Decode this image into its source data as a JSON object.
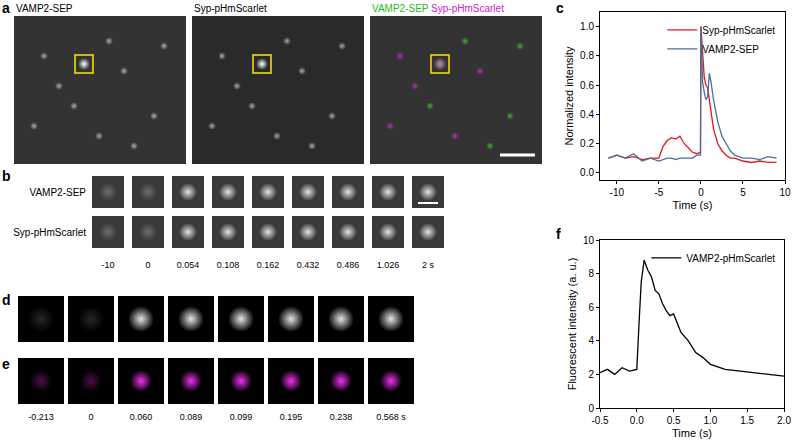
{
  "figure": {
    "panel_labels": [
      "a",
      "b",
      "c",
      "d",
      "e",
      "f"
    ],
    "a": {
      "channels": [
        "VAMP2-SEP",
        "Syp-pHmScarlet"
      ]
    },
    "b": {
      "rows": [
        "VAMP2-SEP",
        "Syp-pHmScarlet"
      ],
      "times": [
        "-10",
        "0",
        "0.054",
        "0.108",
        "0.162",
        "0.432",
        "0.486",
        "1.026",
        "2 s"
      ]
    },
    "e": {
      "times": [
        "-0.213",
        "0",
        "0.060",
        "0.089",
        "0.099",
        "0.195",
        "0.238",
        "0.568 s"
      ]
    }
  },
  "chart_data": [
    {
      "type": "line",
      "x_label": "Time (s)",
      "y_label": "Normalized intensity",
      "x": [
        -11,
        -10,
        -9,
        -8,
        -7,
        -6,
        -5,
        -4.5,
        -4,
        -3.5,
        -3,
        -2.5,
        -2,
        -1.5,
        -1,
        -0.5,
        -0.05,
        0,
        0.2,
        0.4,
        0.6,
        0.8,
        1.0,
        1.2,
        1.5,
        2,
        2.5,
        3,
        3.5,
        4,
        5,
        6,
        7,
        8,
        9
      ],
      "series": [
        {
          "name": "Syp-pHmScarlet",
          "color": "#e8141c",
          "values": [
            0.1,
            0.12,
            0.1,
            0.11,
            0.09,
            0.1,
            0.1,
            0.18,
            0.22,
            0.24,
            0.23,
            0.25,
            0.2,
            0.17,
            0.14,
            0.13,
            0.14,
            1.0,
            0.8,
            0.65,
            0.6,
            0.58,
            0.5,
            0.42,
            0.3,
            0.2,
            0.15,
            0.12,
            0.1,
            0.1,
            0.08,
            0.07,
            0.08,
            0.07,
            0.07
          ]
        },
        {
          "name": "VAMP2-SEP",
          "color": "#4a6e9c",
          "values": [
            0.1,
            0.12,
            0.1,
            0.13,
            0.08,
            0.1,
            0.08,
            0.09,
            0.1,
            0.1,
            0.09,
            0.1,
            0.1,
            0.1,
            0.1,
            0.12,
            0.12,
            1.0,
            0.62,
            0.55,
            0.5,
            0.52,
            0.68,
            0.62,
            0.5,
            0.35,
            0.25,
            0.2,
            0.15,
            0.12,
            0.1,
            0.1,
            0.09,
            0.11,
            0.1
          ]
        }
      ],
      "xlim": [
        -12,
        10
      ],
      "xticks": [
        -10,
        -5,
        0,
        5,
        10
      ],
      "ylim": [
        -0.05,
        1.1
      ],
      "yticks": [
        {
          "value": 0,
          "label": "0.0"
        },
        0.2,
        0.4,
        0.6,
        0.8,
        {
          "value": 1,
          "label": "1.0"
        }
      ],
      "legend": "top right",
      "grid": false
    },
    {
      "type": "line",
      "x_label": "Time (s)",
      "y_label": "Fluorescent intensity (a. u.)",
      "x": [
        -0.5,
        -0.4,
        -0.3,
        -0.2,
        -0.1,
        0,
        0.03,
        0.06,
        0.1,
        0.15,
        0.2,
        0.25,
        0.3,
        0.35,
        0.4,
        0.45,
        0.5,
        0.6,
        0.7,
        0.8,
        0.9,
        1.0,
        1.2,
        1.4,
        1.6,
        1.8,
        2.0
      ],
      "series": [
        {
          "name": "VAMP2-pHmScarlet",
          "color": "#000000",
          "values": [
            2.1,
            2.3,
            2.0,
            2.4,
            2.2,
            2.3,
            5.0,
            7.5,
            8.8,
            8.2,
            7.8,
            7.0,
            6.8,
            6.2,
            5.8,
            5.5,
            5.6,
            4.5,
            4.0,
            3.3,
            3.0,
            2.6,
            2.3,
            2.2,
            2.1,
            2.0,
            1.9
          ]
        }
      ],
      "xlim": [
        -0.5,
        2.0
      ],
      "xticks": [
        -0.5,
        {
          "value": 0,
          "label": "0.0"
        },
        0.5,
        {
          "value": 1,
          "label": "1.0"
        },
        1.5,
        {
          "value": 2,
          "label": "2.0"
        }
      ],
      "ylim": [
        0,
        10
      ],
      "yticks": [
        0,
        2,
        4,
        6,
        8,
        10
      ],
      "legend": "top right",
      "grid": false
    }
  ]
}
